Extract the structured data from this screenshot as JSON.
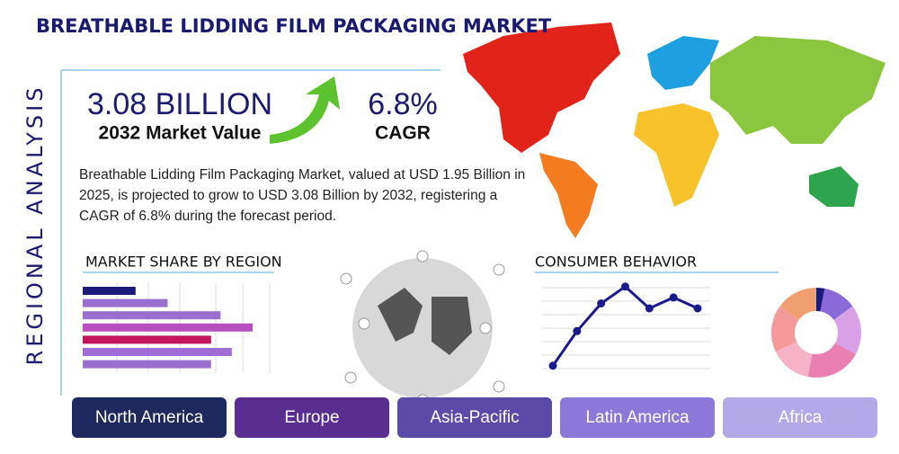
{
  "header": {
    "title": "BREATHABLE LIDDING FILM PACKAGING MARKET"
  },
  "side_label": "REGIONAL ANALYSIS",
  "stats": [
    {
      "value": "3.08 BILLION",
      "label": "2032 Market Value"
    },
    {
      "value": "6.8%",
      "label": "CAGR"
    }
  ],
  "description": "Breathable Lidding Film Packaging Market, valued at USD 1.95 Billion in 2025, is projected to grow to USD 3.08 Billion by 2032, registering a CAGR of 6.8% during the forecast period.",
  "market_share": {
    "title": "MARKET SHARE BY REGION",
    "values": [
      28,
      45,
      73,
      90,
      68,
      79,
      68
    ],
    "colors": [
      "#1a1a7a",
      "#9b6fd0",
      "#9b6fd0",
      "#b84fc0",
      "#c2185b",
      "#a06bd6",
      "#9b6fd0"
    ]
  },
  "consumer_behavior": {
    "title": "CONSUMER BEHAVIOR",
    "values": [
      12,
      47,
      75,
      92,
      70,
      81,
      70
    ],
    "color": "#1a1a8a"
  },
  "donut": {
    "values": [
      3,
      12,
      18,
      20,
      15,
      17,
      15
    ],
    "colors": [
      "#1a1a7a",
      "#8a6ad6",
      "#d9a0e6",
      "#e87fb0",
      "#f6b3c8",
      "#f49a9a",
      "#f0a070"
    ]
  },
  "tabs": [
    "North America",
    "Europe",
    "Asia-Pacific",
    "Latin America",
    "Africa"
  ]
}
